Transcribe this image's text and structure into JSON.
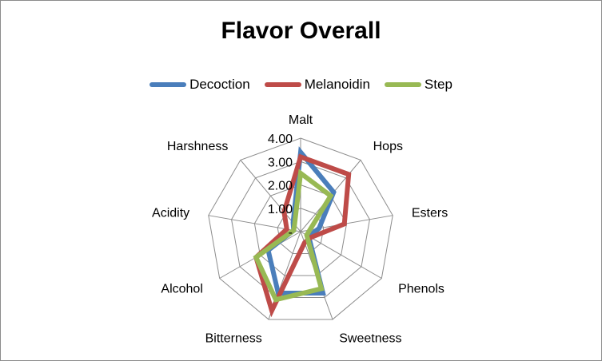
{
  "chart_data": {
    "type": "radar",
    "title": "Flavor Overall",
    "categories": [
      "Malt",
      "Hops",
      "Esters",
      "Phenols",
      "Sweetness",
      "Bitterness",
      "Alcohol",
      "Acidity",
      "Harshness"
    ],
    "tick_labels": [
      "-",
      "1.00",
      "2.00",
      "3.00",
      "4.00"
    ],
    "rlim": [
      0,
      4
    ],
    "grid": true,
    "legend_position": "top",
    "series": [
      {
        "name": "Decoction",
        "color": "#4a7ebb",
        "values": [
          3.4,
          2.2,
          0.8,
          0.4,
          2.8,
          2.8,
          1.6,
          0.3,
          0.5
        ]
      },
      {
        "name": "Melanoidin",
        "color": "#be4b48",
        "values": [
          3.2,
          3.2,
          1.9,
          0.5,
          0.5,
          3.6,
          2.2,
          0.6,
          1.1
        ]
      },
      {
        "name": "Step",
        "color": "#98b954",
        "values": [
          2.5,
          2.0,
          0.4,
          0.3,
          2.6,
          3.1,
          2.2,
          0.3,
          0.4
        ]
      }
    ]
  }
}
